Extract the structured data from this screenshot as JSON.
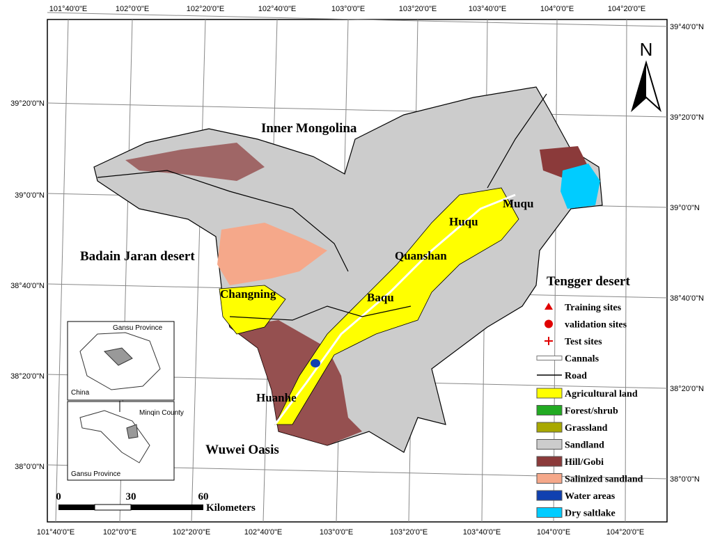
{
  "map": {
    "graticule": {
      "top": [
        "101°40'0\"E",
        "102°0'0\"E",
        "102°20'0\"E",
        "102°40'0\"E",
        "103°0'0\"E",
        "103°20'0\"E",
        "103°40'0\"E",
        "104°0'0\"E",
        "104°20'0\"E"
      ],
      "bottom": [
        "101°40'0\"E",
        "102°0'0\"E",
        "102°20'0\"E",
        "102°40'0\"E",
        "103°0'0\"E",
        "103°20'0\"E",
        "103°40'0\"E",
        "104°0'0\"E",
        "104°20'0\"E"
      ],
      "left": [
        "39°20'0\"N",
        "39°0'0\"N",
        "38°40'0\"N",
        "38°20'0\"N",
        "38°0'0\"N"
      ],
      "right": [
        "39°40'0\"N",
        "39°20'0\"N",
        "39°0'0\"N",
        "38°40'0\"N",
        "38°20'0\"N",
        "38°0'0\"N"
      ]
    },
    "regions": [
      "Inner Mongolina",
      "Badain Jaran desert",
      "Tengger desert",
      "Wuwei Oasis"
    ],
    "districts": [
      "Changning",
      "Baqu",
      "Quanshan",
      "Huqu",
      "Muqu",
      "Huanhe"
    ],
    "north": "N",
    "scale_bar": {
      "labels": [
        "0",
        "30",
        "60"
      ],
      "unit": "Kilometers"
    },
    "inset": {
      "top_labels": [
        "Gansu Province",
        "China"
      ],
      "bottom_labels": [
        "Minqin County",
        "Gansu Province"
      ]
    },
    "legend": {
      "symbols": [
        "Training sites",
        "validation sites",
        "Test sites",
        "Cannals",
        "Road"
      ],
      "classes": [
        {
          "label": "Agricultural land",
          "color": "#ffff00"
        },
        {
          "label": "Forest/shrub",
          "color": "#22aa22"
        },
        {
          "label": "Grassland",
          "color": "#a8a800"
        },
        {
          "label": "Sandland",
          "color": "#cccccc"
        },
        {
          "label": "Hill/Gobi",
          "color": "#8b3a3a"
        },
        {
          "label": "Salinized sandland",
          "color": "#f5a88a"
        },
        {
          "label": "Water areas",
          "color": "#1040b0"
        },
        {
          "label": "Dry saltlake",
          "color": "#00ccff"
        }
      ]
    }
  }
}
